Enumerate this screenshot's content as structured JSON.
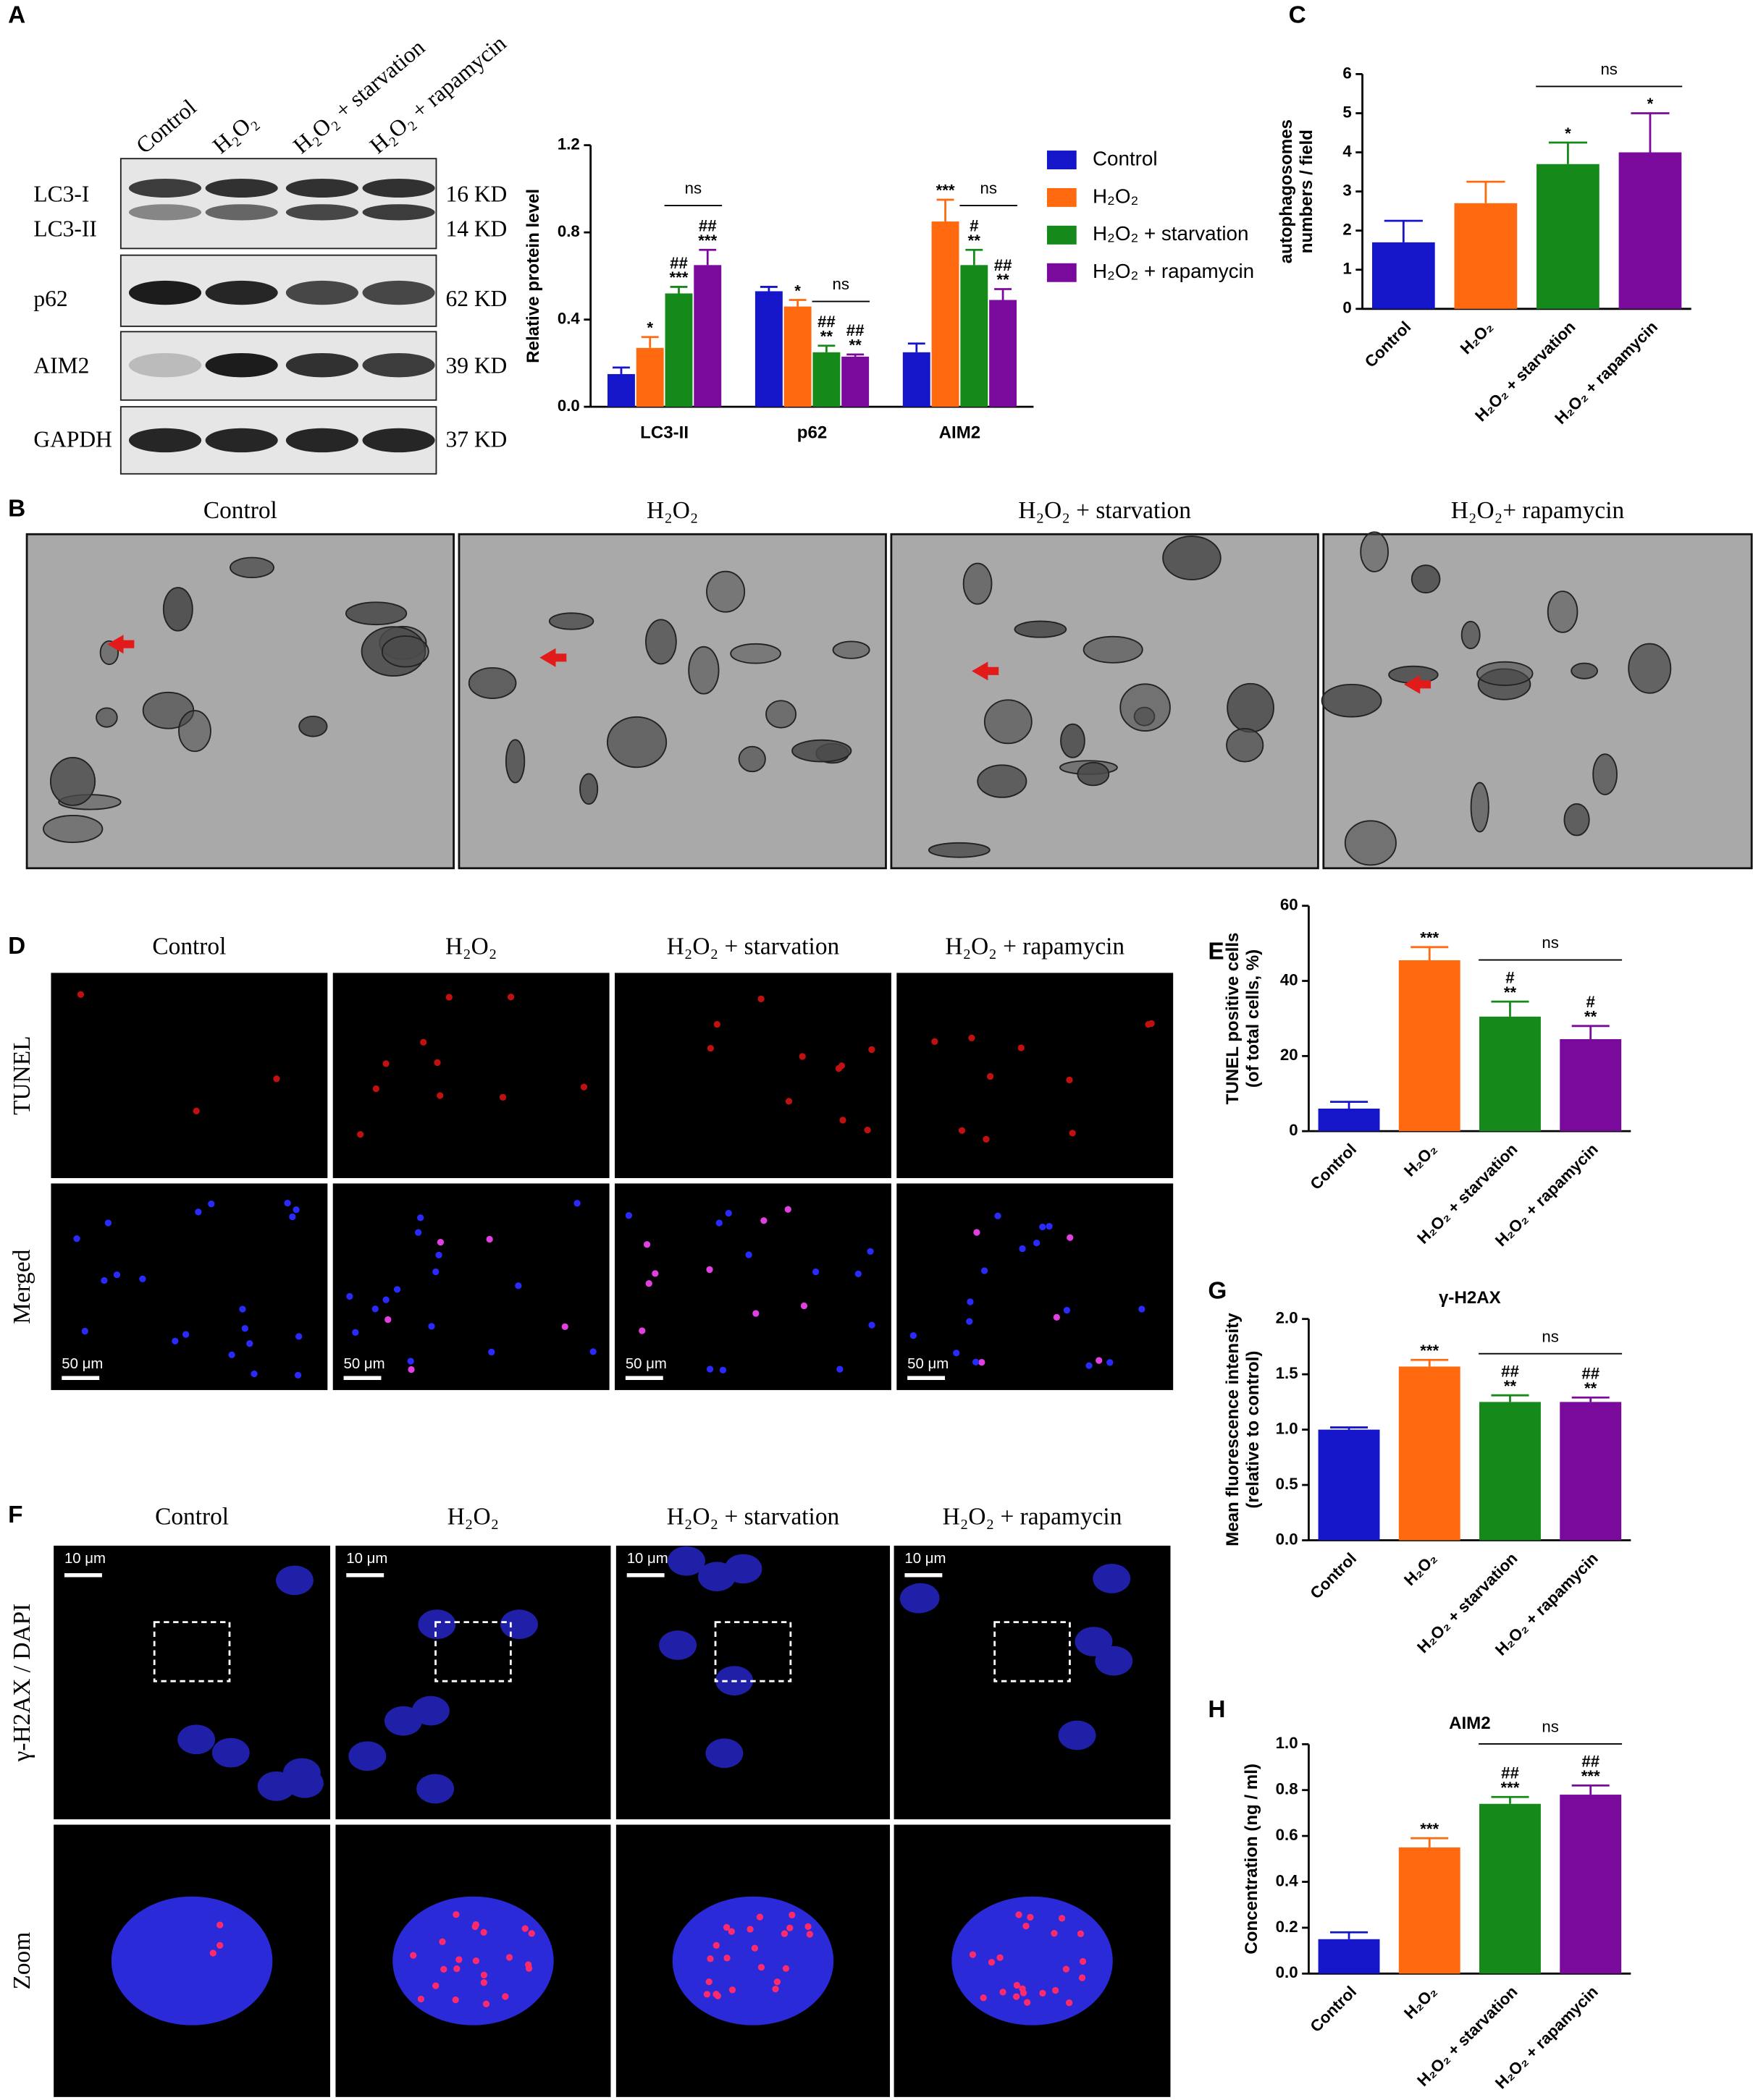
{
  "panel_labels": [
    "A",
    "B",
    "C",
    "D",
    "E",
    "F",
    "G",
    "H"
  ],
  "blot": {
    "lanes": [
      "Control",
      "H₂O₂",
      "H₂O₂ + starvation",
      "H₂O₂ + rapamycin"
    ],
    "proteins": [
      "LC3-I",
      "LC3-II",
      "p62",
      "AIM2",
      "GAPDH"
    ],
    "sizes": [
      "16 KD",
      "14 KD",
      "62 KD",
      "39 KD",
      "37 KD"
    ]
  },
  "em": {
    "titles": [
      "Control",
      "H₂O₂",
      "H₂O₂ + starvation",
      "H₂O₂+ rapamycin"
    ]
  },
  "tunel": {
    "titles": [
      "Control",
      "H₂O₂",
      "H₂O₂ + starvation",
      "H₂O₂ + rapamycin"
    ],
    "rows": [
      "TUNEL",
      "Merged"
    ],
    "scale_bar": "50 μm"
  },
  "h2ax_images": {
    "titles": [
      "Control",
      "H₂O₂",
      "H₂O₂ + starvation",
      "H₂O₂ + rapamycin"
    ],
    "rows": [
      "γ-H2AX / DAPI",
      "Zoom"
    ],
    "scale_bar": "10 μm"
  },
  "chart_data": [
    {
      "type": "bar",
      "ylabel": [
        "Relative protein level"
      ],
      "categories": [
        "LC3-II",
        "p62",
        "AIM2"
      ],
      "ylim": [
        0,
        1.2
      ],
      "yticks": [
        {
          "value": 0,
          "label": "0.0"
        },
        0.4,
        0.8,
        1.2
      ],
      "legend": "right",
      "bracket": "ns",
      "series": [
        {
          "name": "Control",
          "color": "#1515c9",
          "values": [
            0.15,
            0.53,
            0.25
          ],
          "errors": [
            0.03,
            0.02,
            0.04
          ],
          "significance": [
            null,
            null,
            null
          ]
        },
        {
          "name": "H₂O₂",
          "color": "#ff6a10",
          "values": [
            0.27,
            0.46,
            0.85
          ],
          "errors": [
            0.05,
            0.03,
            0.1
          ],
          "significance": [
            [
              "*"
            ],
            [
              "*"
            ],
            [
              "***"
            ]
          ]
        },
        {
          "name": "H₂O₂ + starvation",
          "color": "#15891a",
          "values": [
            0.52,
            0.25,
            0.65
          ],
          "errors": [
            0.03,
            0.03,
            0.07
          ],
          "significance": [
            [
              "##",
              "***"
            ],
            [
              "##",
              "**"
            ],
            [
              "#",
              "**"
            ]
          ]
        },
        {
          "name": "H₂O₂ + rapamycin",
          "color": "#7a0a9b",
          "values": [
            0.65,
            0.23,
            0.49
          ],
          "errors": [
            0.07,
            0.01,
            0.05
          ],
          "significance": [
            [
              "##",
              "***"
            ],
            [
              "##",
              "**"
            ],
            [
              "##",
              "**"
            ]
          ]
        }
      ]
    },
    {
      "type": "bar",
      "ylabel": [
        "autophagosomes",
        "numbers / field"
      ],
      "categories": [
        "Control",
        "H₂O₂",
        "H₂O₂ + starvation",
        "H₂O₂ + rapamycin"
      ],
      "values": [
        1.7,
        2.7,
        3.7,
        4.0
      ],
      "errors": [
        0.55,
        0.55,
        0.55,
        1.0
      ],
      "significance": [
        null,
        null,
        [
          "*"
        ],
        [
          "*"
        ]
      ],
      "colors": [
        "#1515c9",
        "#ff6a10",
        "#15891a",
        "#7a0a9b"
      ],
      "ylim": [
        0,
        6
      ],
      "yticks": [
        0,
        1,
        2,
        3,
        4,
        5,
        6
      ],
      "xtick_rotation": -45,
      "bracket": "ns"
    },
    {
      "type": "bar",
      "ylabel": [
        "TUNEL positive cells",
        "(of total cells, %)"
      ],
      "categories": [
        "Control",
        "H₂O₂",
        "H₂O₂ + starvation",
        "H₂O₂ + rapamycin"
      ],
      "values": [
        6,
        45.5,
        30.5,
        24.5
      ],
      "errors": [
        1.8,
        3.5,
        4,
        3.5
      ],
      "significance": [
        null,
        [
          "***"
        ],
        [
          "#",
          "**"
        ],
        [
          "#",
          "**"
        ]
      ],
      "colors": [
        "#1515c9",
        "#ff6a10",
        "#15891a",
        "#7a0a9b"
      ],
      "ylim": [
        0,
        60
      ],
      "yticks": [
        0,
        20,
        40,
        60
      ],
      "xtick_rotation": -45,
      "bracket": "ns"
    },
    {
      "type": "bar",
      "title": "γ-H2AX",
      "ylabel": [
        "Mean fluorescence intensity",
        "(relative to control)"
      ],
      "categories": [
        "Control",
        "H₂O₂",
        "H₂O₂ + starvation",
        "H₂O₂ + rapamycin"
      ],
      "values": [
        1.0,
        1.57,
        1.25,
        1.25
      ],
      "errors": [
        0.02,
        0.06,
        0.06,
        0.04
      ],
      "significance": [
        null,
        [
          "***"
        ],
        [
          "##",
          "**"
        ],
        [
          "##",
          "**"
        ]
      ],
      "colors": [
        "#1515c9",
        "#ff6a10",
        "#15891a",
        "#7a0a9b"
      ],
      "ylim": [
        0,
        2
      ],
      "yticks": [
        {
          "value": 0,
          "label": "0.0"
        },
        0.5,
        {
          "value": 1,
          "label": "1.0"
        },
        1.5,
        {
          "value": 2,
          "label": "2.0"
        }
      ],
      "xtick_rotation": -45,
      "bracket": "ns"
    },
    {
      "type": "bar",
      "title": "AIM2",
      "ylabel": [
        "Concentration (ng / ml)"
      ],
      "categories": [
        "Control",
        "H₂O₂",
        "H₂O₂ + starvation",
        "H₂O₂ + rapamycin"
      ],
      "values": [
        0.15,
        0.55,
        0.74,
        0.78
      ],
      "errors": [
        0.03,
        0.04,
        0.03,
        0.04
      ],
      "significance": [
        null,
        [
          "***"
        ],
        [
          "##",
          "***"
        ],
        [
          "##",
          "***"
        ]
      ],
      "colors": [
        "#1515c9",
        "#ff6a10",
        "#15891a",
        "#7a0a9b"
      ],
      "ylim": [
        0,
        1
      ],
      "yticks": [
        {
          "value": 0,
          "label": "0.0"
        },
        0.2,
        0.4,
        0.6,
        0.8,
        {
          "value": 1,
          "label": "1.0"
        }
      ],
      "xtick_rotation": -45,
      "bracket": "ns"
    }
  ]
}
